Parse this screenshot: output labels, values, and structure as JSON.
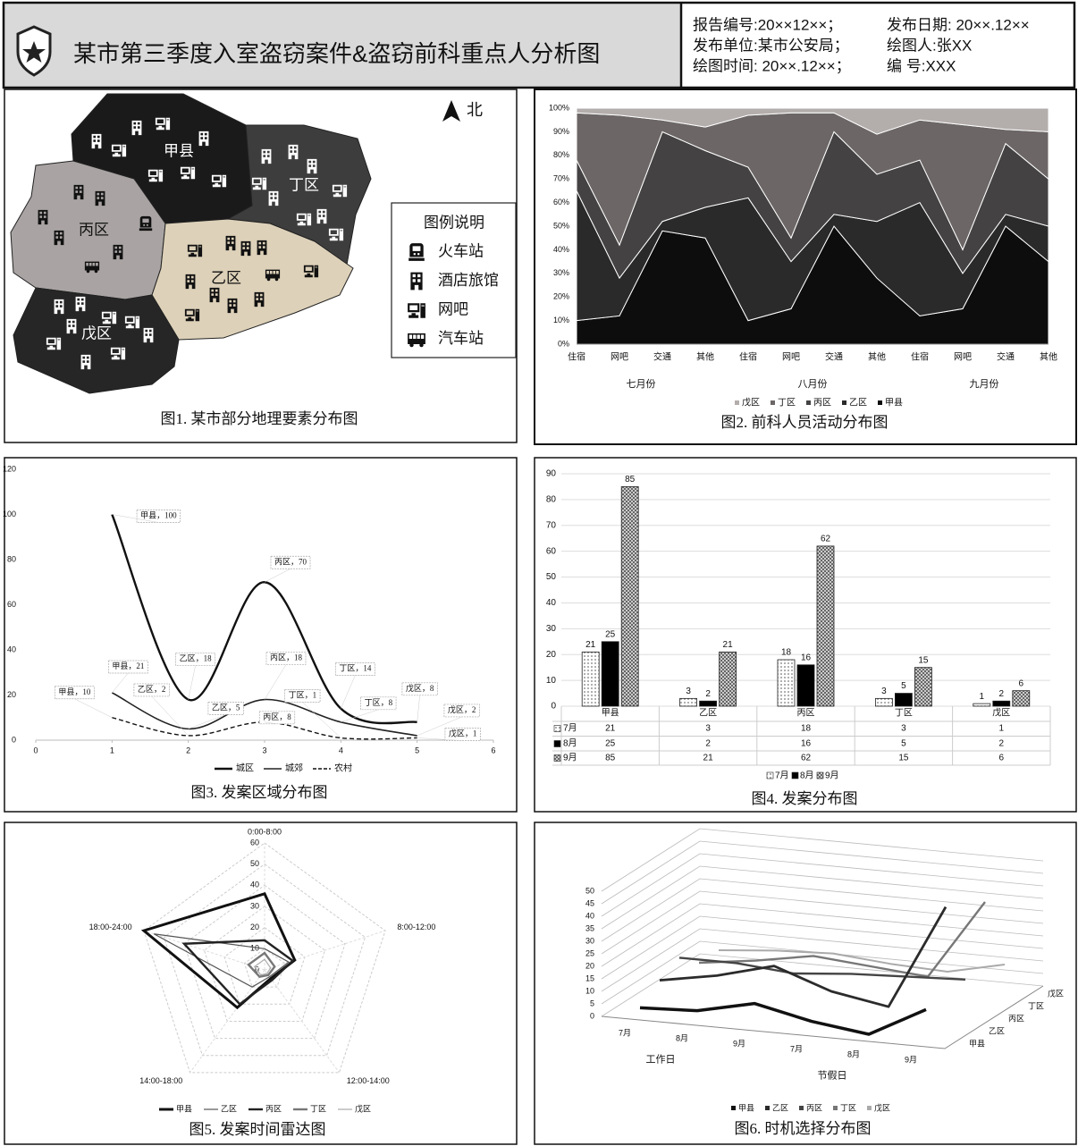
{
  "header": {
    "title": "某市第三季度入室盗窃案件&盗窃前科重点人分析图",
    "info": [
      [
        "报告编号:20××12××；",
        "发布日期: 20××.12××"
      ],
      [
        "发布单位:某市公安局；",
        "绘图人:张XX"
      ],
      [
        "绘图时间: 20××.12××；",
        "编 号:XXX"
      ]
    ]
  },
  "map": {
    "caption": "图1. 某市部分地理要素分布图",
    "north": "北",
    "regions": [
      {
        "label": "甲县",
        "color": "#1a1a1a"
      },
      {
        "label": "丁区",
        "color": "#3d3d3d"
      },
      {
        "label": "丙区",
        "color": "#a9a4a3"
      },
      {
        "label": "乙区",
        "color": "#ddd1b9"
      },
      {
        "label": "戊区",
        "color": "#262626"
      }
    ],
    "legend": {
      "title": "图例说明",
      "items": [
        "火车站",
        "酒店旅馆",
        "网吧",
        "汽车站"
      ]
    }
  },
  "chart_data": [
    {
      "type": "area",
      "stacked": true,
      "caption": "图2. 前科人员活动分布图",
      "categories": [
        "住宿",
        "网吧",
        "交通",
        "其他",
        "住宿",
        "网吧",
        "交通",
        "其他",
        "住宿",
        "网吧",
        "交通",
        "其他"
      ],
      "groups": [
        "七月份",
        "八月份",
        "九月份"
      ],
      "series": [
        {
          "name": "戊区",
          "color": "#b3adac",
          "values": [
            2,
            3,
            5,
            8,
            3,
            2,
            2,
            11,
            5,
            7,
            9,
            10
          ]
        },
        {
          "name": "丁区",
          "color": "#6c6766",
          "values": [
            20,
            55,
            5,
            10,
            22,
            53,
            8,
            17,
            17,
            53,
            6,
            20
          ]
        },
        {
          "name": "丙区",
          "color": "#444242",
          "values": [
            13,
            14,
            38,
            24,
            13,
            10,
            35,
            20,
            18,
            10,
            30,
            20
          ]
        },
        {
          "name": "乙区",
          "color": "#2a2a2a",
          "values": [
            55,
            16,
            4,
            13,
            52,
            20,
            5,
            24,
            48,
            15,
            5,
            15
          ]
        },
        {
          "name": "甲县",
          "color": "#0d0d0d",
          "values": [
            10,
            12,
            48,
            45,
            10,
            15,
            50,
            28,
            12,
            15,
            50,
            35
          ]
        }
      ],
      "ylim": [
        0,
        100
      ],
      "yticks": [
        {
          "value": 0,
          "label": "0%"
        },
        {
          "value": 10,
          "label": "10%"
        },
        {
          "value": 20,
          "label": "20%"
        },
        {
          "value": 30,
          "label": "30%"
        },
        {
          "value": 40,
          "label": "40%"
        },
        {
          "value": 50,
          "label": "50%"
        },
        {
          "value": 60,
          "label": "60%"
        },
        {
          "value": 70,
          "label": "70%"
        },
        {
          "value": 80,
          "label": "80%"
        },
        {
          "value": 90,
          "label": "90%"
        },
        {
          "value": 100,
          "label": "100%"
        }
      ],
      "legend": "bottom"
    },
    {
      "type": "line",
      "smooth": true,
      "caption": "图3. 发案区域分布图",
      "x": [
        1,
        2,
        3,
        4,
        5
      ],
      "series": [
        {
          "name": "城区",
          "color": "#111111",
          "style": "solid",
          "values": [
            100,
            18,
            70,
            14,
            8
          ],
          "value_labels": [
            "甲县，100",
            "乙区，18",
            "丙区，70",
            "丁区，14",
            "戊区，8"
          ]
        },
        {
          "name": "城郊",
          "color": "#222222",
          "style": "solid",
          "values": [
            21,
            5,
            18,
            8,
            2
          ],
          "value_labels": [
            "甲县，21",
            "乙区，5",
            "丙区，18",
            "丁区，8",
            "戊区，2"
          ]
        },
        {
          "name": "农村",
          "color": "#111111",
          "style": "dashed",
          "values": [
            10,
            2,
            8,
            1,
            1
          ],
          "value_labels": [
            "甲县，10",
            "乙区，2",
            "丙区，8",
            "丁区，1",
            "戊区，1"
          ]
        }
      ],
      "xlim": [
        0,
        6
      ],
      "xticks": [
        0,
        1,
        2,
        3,
        4,
        5,
        6
      ],
      "ylim": [
        0,
        120
      ],
      "yticks": [
        0,
        20,
        40,
        60,
        80,
        100,
        120
      ],
      "legend": "bottom"
    },
    {
      "type": "bar",
      "caption": "图4. 发案分布图",
      "categories": [
        "甲县",
        "乙区",
        "丙区",
        "丁区",
        "戊区"
      ],
      "series": [
        {
          "name": "7月",
          "color": "#bdbdbd",
          "pattern": "dots",
          "values": [
            21,
            3,
            18,
            3,
            1
          ]
        },
        {
          "name": "8月",
          "color": "#000000",
          "pattern": "solid",
          "values": [
            25,
            2,
            16,
            5,
            2
          ]
        },
        {
          "name": "9月",
          "color": "#8a8a8a",
          "pattern": "checker",
          "values": [
            85,
            21,
            62,
            15,
            6
          ]
        }
      ],
      "ylim": [
        0,
        90
      ],
      "yticks": [
        0,
        10,
        20,
        30,
        40,
        50,
        60,
        70,
        80,
        90
      ],
      "grid": true,
      "data_labels": true,
      "data_table": true,
      "legend": "bottom"
    },
    {
      "type": "radar",
      "caption": "图5. 发案时间雷达图",
      "axes": [
        "0:00-8:00",
        "8:00-12:00",
        "12:00-14:00",
        "14:00-18:00",
        "18:00-24:00"
      ],
      "series": [
        {
          "name": "甲县",
          "color": "#111111",
          "values": [
            36,
            15,
            5,
            22,
            60
          ]
        },
        {
          "name": "乙区",
          "color": "#555555",
          "values": [
            10,
            12,
            4,
            10,
            55
          ]
        },
        {
          "name": "丙区",
          "color": "#222222",
          "values": [
            14,
            14,
            6,
            20,
            40
          ]
        },
        {
          "name": "丁区",
          "color": "#777777",
          "values": [
            8,
            5,
            3,
            4,
            8
          ]
        },
        {
          "name": "戊区",
          "color": "#aaaaaa",
          "values": [
            5,
            3,
            2,
            3,
            5
          ]
        }
      ],
      "rlim": [
        0,
        60
      ],
      "rticks": [
        0,
        10,
        20,
        30,
        40,
        50,
        60
      ],
      "grid": true,
      "legend": "bottom"
    },
    {
      "type": "line3d",
      "caption": "图6. 时机选择分布图",
      "categories": [
        "7月",
        "8月",
        "9月",
        "7月",
        "8月",
        "9月"
      ],
      "groups": [
        "工作日",
        "节假日"
      ],
      "series": [
        {
          "name": "甲县",
          "color": "#111111",
          "values": [
            2,
            3,
            8,
            3,
            0,
            12
          ]
        },
        {
          "name": "乙区",
          "color": "#2b2b2b",
          "values": [
            8,
            12,
            18,
            10,
            6,
            48
          ]
        },
        {
          "name": "丙区",
          "color": "#444444",
          "values": [
            12,
            12,
            10,
            12,
            13,
            14
          ]
        },
        {
          "name": "丁区",
          "color": "#777777",
          "values": [
            5,
            8,
            12,
            10,
            8,
            40
          ]
        },
        {
          "name": "戊区",
          "color": "#aaaaaa",
          "values": [
            5,
            7,
            8,
            6,
            5,
            10
          ]
        }
      ],
      "ylim": [
        0,
        50
      ],
      "yticks": [
        0,
        5,
        10,
        15,
        20,
        25,
        30,
        35,
        40,
        45,
        50
      ],
      "grid": true,
      "legend": "bottom"
    }
  ]
}
